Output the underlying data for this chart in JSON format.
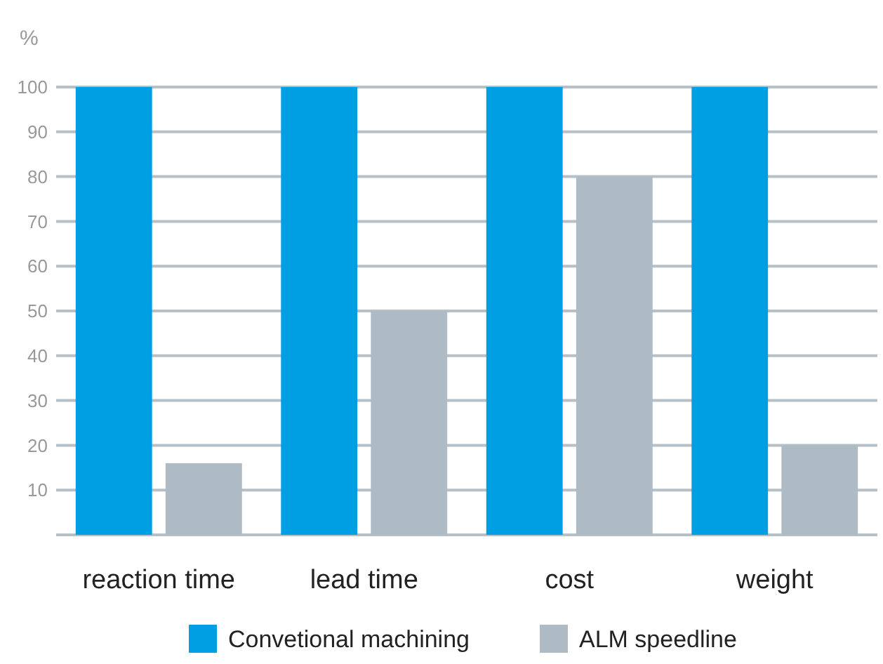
{
  "chart_data": {
    "type": "bar",
    "ylabel": "%",
    "categories": [
      "reaction time",
      "lead time",
      "cost",
      "weight"
    ],
    "series": [
      {
        "name": "Convetional machining",
        "color": "#009fe3",
        "values": [
          100,
          100,
          100,
          100
        ]
      },
      {
        "name": "ALM speedline",
        "color": "#aebbc4",
        "values": [
          16,
          50,
          80,
          20
        ]
      }
    ],
    "ylim": [
      0,
      100
    ],
    "yticks": [
      {
        "value": 0,
        "label": null
      },
      10,
      20,
      30,
      40,
      50,
      60,
      70,
      80,
      90,
      100
    ],
    "grid": "y",
    "legend": "bottom"
  }
}
